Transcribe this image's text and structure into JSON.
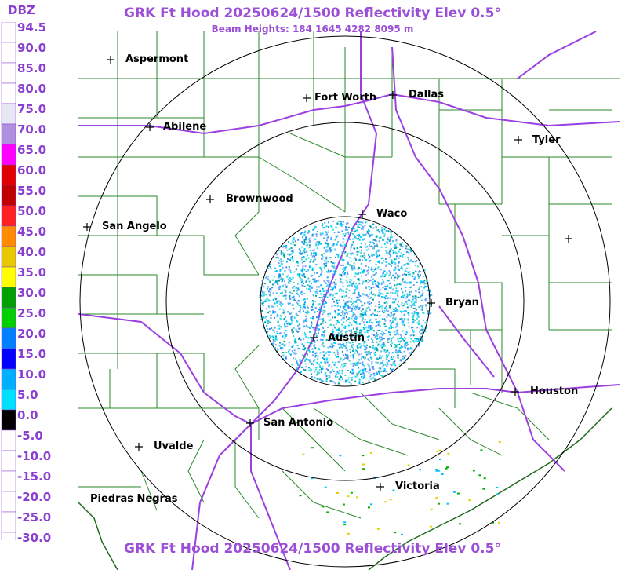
{
  "title": "GRK Ft Hood 20250624/1500 Reflectivity Elev 0.5°",
  "beam_heights": "Beam Heights: 184 1645 4282 8095 m",
  "legend": {
    "unit": "DBZ",
    "labels": [
      "94.5",
      "90.0",
      "85.0",
      "80.0",
      "75.0",
      "70.0",
      "65.0",
      "60.0",
      "55.0",
      "50.0",
      "45.0",
      "40.0",
      "35.0",
      "30.0",
      "25.0",
      "20.0",
      "15.0",
      "10.0",
      "5.0",
      "0.0",
      "-5.0",
      "-10.0",
      "-15.0",
      "-20.0",
      "-25.0",
      "-30.0"
    ],
    "colors": [
      "#ffffff",
      "#ffffff",
      "#ffffff",
      "#ffffff",
      "#e6e6f5",
      "#b08ee0",
      "#ff00ff",
      "#e00000",
      "#c00000",
      "#ff2020",
      "#ff8c00",
      "#e8c800",
      "#ffff00",
      "#00a000",
      "#00d000",
      "#0080ff",
      "#0000ff",
      "#00b0ff",
      "#00e0ff",
      "#000000",
      "#ffffff",
      "#ffffff",
      "#ffffff",
      "#ffffff",
      "#ffffff",
      "#ffffff"
    ]
  },
  "cities": [
    {
      "name": "Aspermont",
      "id": "aspermont"
    },
    {
      "name": "Fort Worth",
      "id": "fort-worth"
    },
    {
      "name": "Dallas",
      "id": "dallas"
    },
    {
      "name": "Abilene",
      "id": "abilene"
    },
    {
      "name": "Tyler",
      "id": "tyler"
    },
    {
      "name": "Brownwood",
      "id": "brownwood"
    },
    {
      "name": "Waco",
      "id": "waco"
    },
    {
      "name": "San Angelo",
      "id": "san-angelo"
    },
    {
      "name": "Bryan",
      "id": "bryan"
    },
    {
      "name": "Austin",
      "id": "austin"
    },
    {
      "name": "Houston",
      "id": "houston"
    },
    {
      "name": "San Antonio",
      "id": "san-antonio"
    },
    {
      "name": "Uvalde",
      "id": "uvalde"
    },
    {
      "name": "Victoria",
      "id": "victoria"
    },
    {
      "name": "Piedras Negras",
      "id": "piedras-negras"
    },
    {
      "name": "",
      "id": "unnamed-east"
    }
  ],
  "colors": {
    "title": "#9b4fd6",
    "roads": "#9b3fe0",
    "borders": "#1e7a1e",
    "rings": "#000000"
  }
}
